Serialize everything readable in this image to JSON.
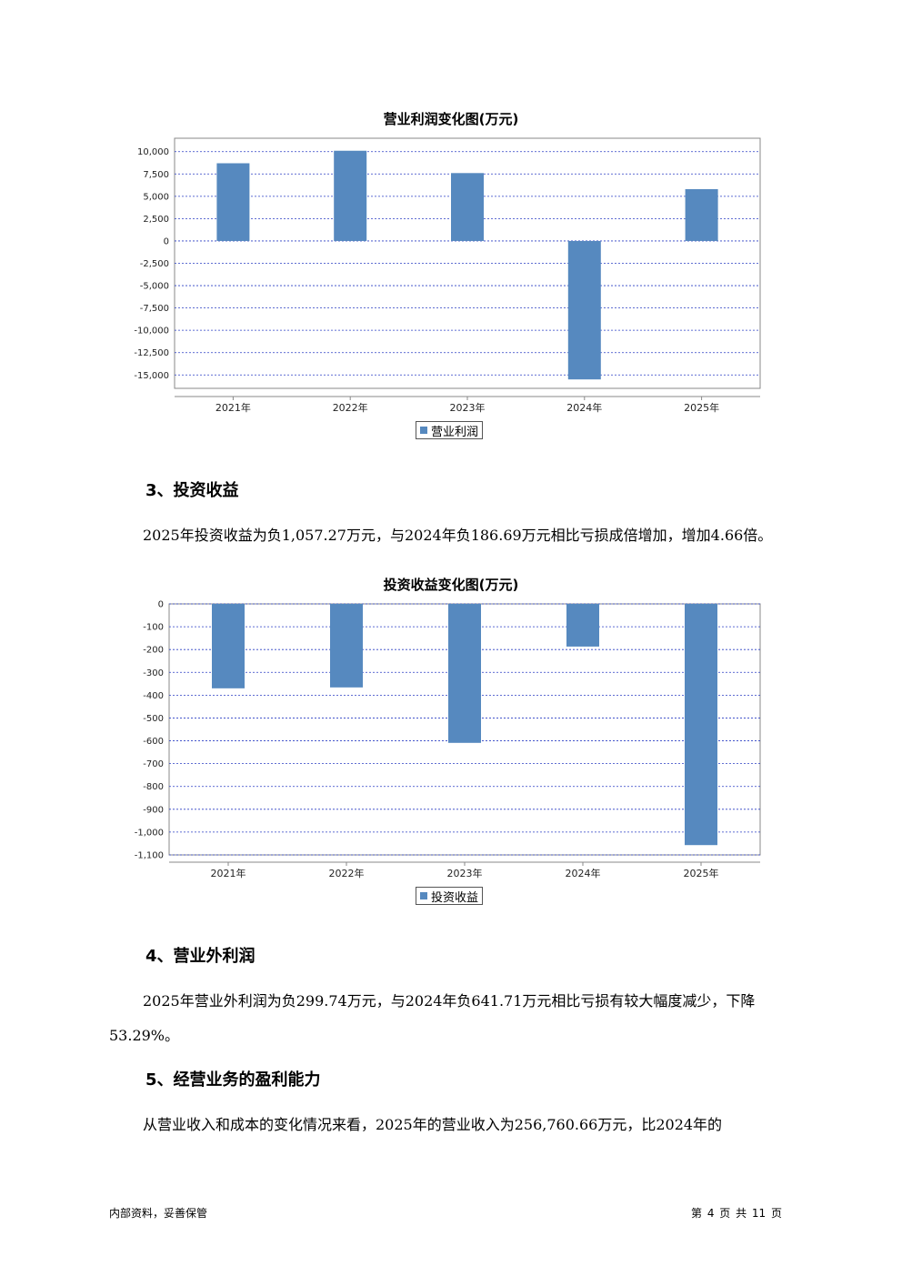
{
  "chart1": {
    "title": "营业利润变化图(万元)",
    "legend": "营业利润",
    "chart_data": {
      "type": "bar",
      "title": "营业利润变化图(万元)",
      "categories": [
        "2021年",
        "2022年",
        "2023年",
        "2024年",
        "2025年"
      ],
      "series": [
        {
          "name": "营业利润",
          "values": [
            8700,
            10100,
            7600,
            -15500,
            5800
          ]
        }
      ],
      "ylim": [
        -16500,
        11500
      ],
      "yticks": [
        10000,
        7500,
        5000,
        2500,
        0,
        -2500,
        -5000,
        -7500,
        -10000,
        -12500,
        -15000
      ],
      "ytick_labels": [
        "10,000",
        "7,500",
        "5,000",
        "2,500",
        "0",
        "-2,500",
        "-5,000",
        "-7,500",
        "-10,000",
        "-12,500",
        "-15,000"
      ],
      "grid": true,
      "legend_position": "bottom-center",
      "color": "#5689bf"
    }
  },
  "section3": {
    "heading": "3、投资收益",
    "text": "2025年投资收益为负1,057.27万元，与2024年负186.69万元相比亏损成倍增加，增加4.66倍。"
  },
  "chart2": {
    "title": "投资收益变化图(万元)",
    "legend": "投资收益",
    "chart_data": {
      "type": "bar",
      "title": "投资收益变化图(万元)",
      "categories": [
        "2021年",
        "2022年",
        "2023年",
        "2024年",
        "2025年"
      ],
      "series": [
        {
          "name": "投资收益",
          "values": [
            -370,
            -366,
            -609,
            -187,
            -1057
          ]
        }
      ],
      "ylim": [
        -1100,
        0
      ],
      "yticks": [
        0,
        -100,
        -200,
        -300,
        -400,
        -500,
        -600,
        -700,
        -800,
        -900,
        -1000,
        -1100
      ],
      "ytick_labels": [
        "0",
        "-100",
        "-200",
        "-300",
        "-400",
        "-500",
        "-600",
        "-700",
        "-800",
        "-900",
        "-1,000",
        "-1,100"
      ],
      "grid": true,
      "legend_position": "bottom-center",
      "color": "#5689bf"
    }
  },
  "section4": {
    "heading": "4、营业外利润",
    "text_line1": "2025年营业外利润为负299.74万元，与2024年负641.71万元相比亏损有较大幅度减少，下降",
    "text_line2": "53.29%。"
  },
  "section5": {
    "heading": "5、经营业务的盈利能力",
    "text": "从营业收入和成本的变化情况来看，2025年的营业收入为256,760.66万元，比2024年的"
  },
  "footer": {
    "left": "内部资料，妥善保管",
    "right": "第 4 页   共 11 页"
  }
}
